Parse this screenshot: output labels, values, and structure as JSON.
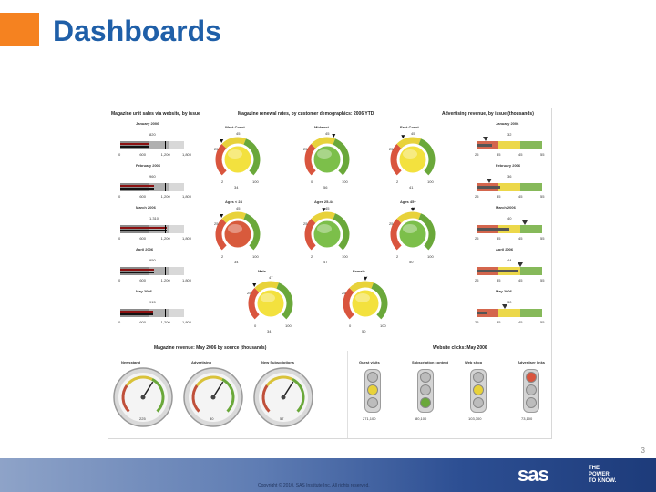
{
  "slide": {
    "title": "Dashboards",
    "page_number": "3",
    "copyright": "Copyright © 2010, SAS Institute Inc. All rights reserved.",
    "logo_text": "sas",
    "tagline": [
      "THE",
      "POWER",
      "TO KNOW."
    ]
  },
  "colors": {
    "accent_orange": "#f58220",
    "title_blue": "#1f5fa8",
    "good": "#6aa83a",
    "warn": "#e8d23a",
    "bad": "#d9553e"
  },
  "dashboard": {
    "unit_sales": {
      "header": "Magazine unit sales via website, by issue",
      "ticks": [
        "0",
        "600",
        "1,200",
        "1,800"
      ],
      "items": [
        {
          "month": "January 2006",
          "value_label": "820",
          "value": 820
        },
        {
          "month": "February 2006",
          "value_label": "960",
          "value": 960
        },
        {
          "month": "March 2006",
          "value_label": "1,310",
          "value": 1310
        },
        {
          "month": "April 2006",
          "value_label": "950",
          "value": 950
        },
        {
          "month": "May 2006",
          "value_label": "915",
          "value": 915
        }
      ]
    },
    "renewal": {
      "header": "Magazine renewal rates, by customer demographics: 2006 YTD",
      "gauges": [
        {
          "name": "West Coast",
          "top": "45",
          "left": "25",
          "min": "2",
          "max": "100",
          "value_label": "34",
          "status": "warn"
        },
        {
          "name": "Midwest",
          "top": "45",
          "left": "25",
          "min": "0",
          "max": "100",
          "value_label": "56",
          "status": "good"
        },
        {
          "name": "East Coast",
          "top": "45",
          "left": "25",
          "min": "2",
          "max": "100",
          "value_label": "41",
          "status": "warn"
        },
        {
          "name": "Ages < 24",
          "top": "45",
          "left": "25",
          "min": "2",
          "max": "100",
          "value_label": "34",
          "status": "bad"
        },
        {
          "name": "Ages 25-44",
          "top": "45",
          "left": "25",
          "min": "2",
          "max": "100",
          "value_label": "47",
          "status": "good"
        },
        {
          "name": "Ages 45+",
          "top": "45",
          "left": "25",
          "min": "2",
          "max": "100",
          "value_label": "50",
          "status": "good"
        },
        {
          "name": "Male",
          "top": "47",
          "left": "25",
          "min": "0",
          "max": "100",
          "value_label": "34",
          "status": "warn"
        },
        {
          "name": "Female",
          "top": "37",
          "left": "25",
          "min": "0",
          "max": "100",
          "value_label": "50",
          "status": "warn"
        }
      ]
    },
    "ad_revenue": {
      "header": "Advertising revenue, by issue (thousands)",
      "ticks": [
        "25",
        "35",
        "45",
        "55"
      ],
      "items": [
        {
          "month": "January 2006",
          "value_label": "32",
          "value": 32,
          "target": 29
        },
        {
          "month": "February 2006",
          "value_label": "36",
          "value": 36,
          "target": 31
        },
        {
          "month": "March 2006",
          "value_label": "40",
          "value": 40,
          "target": 47
        },
        {
          "month": "April 2006",
          "value_label": "44",
          "value": 44,
          "target": 45
        },
        {
          "month": "May 2006",
          "value_label": "30",
          "value": 30,
          "target": 38
        }
      ]
    },
    "source": {
      "header": "Magazine revenue: May 2006 by source (thousands)",
      "dials": [
        {
          "name": "Newsstand",
          "value_label": "225"
        },
        {
          "name": "Advertising",
          "value_label": "30"
        },
        {
          "name": "New Subscriptions",
          "value_label": "57"
        }
      ]
    },
    "clicks": {
      "header": "Website clicks: May 2006",
      "lights": [
        {
          "name": "Guest visits",
          "value_label": "271,100",
          "active": "warn"
        },
        {
          "name": "Subscription content",
          "value_label": "80,100",
          "active": "good"
        },
        {
          "name": "Web shop",
          "value_label": "103,300",
          "active": "warn"
        },
        {
          "name": "Advertiser links",
          "value_label": "73,100",
          "active": "bad"
        }
      ]
    }
  }
}
